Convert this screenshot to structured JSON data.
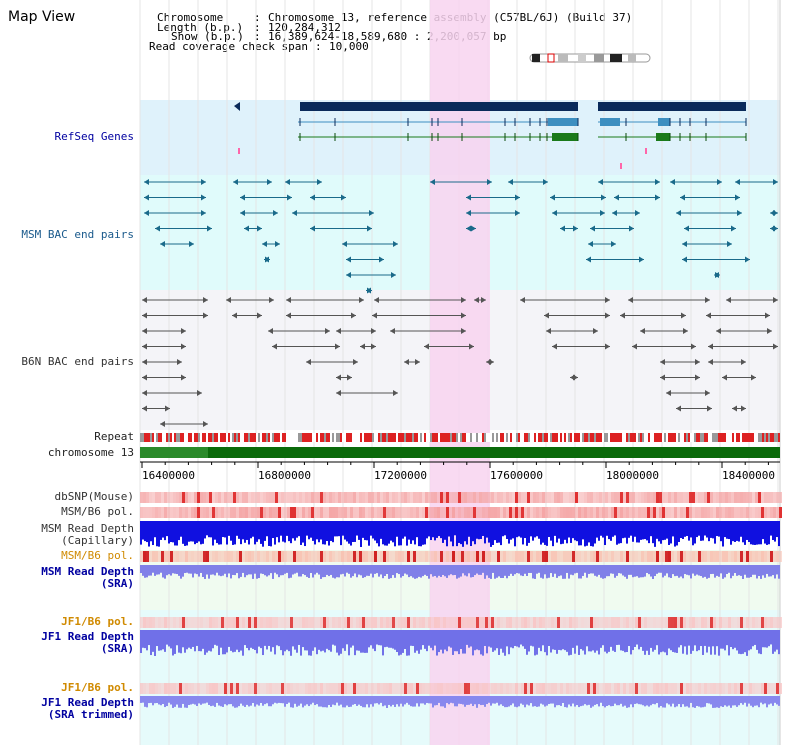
{
  "title": "Map View",
  "info": {
    "chromosome_key": "Chromosome",
    "chromosome_value": "Chromosome 13, reference assembly (C57BL/6J) (Build 37)",
    "length_key": "Length (b.p.)",
    "length_value": "120,284,312",
    "show_key": "Show (b.p.)",
    "show_value": "16,389,624-18,589,680 : 2,200,057 bp",
    "coverage_key": "Read coverage check span",
    "coverage_value": "10,000"
  },
  "tracks": {
    "refseq": "RefSeq Genes",
    "msm_bac": "MSM BAC end pairs",
    "b6n_bac": "B6N BAC end pairs",
    "repeat": "Repeat",
    "chromosome": "chromosome 13",
    "dbsnp": "dbSNP(Mouse)",
    "msm_b6_pol_1": "MSM/B6 pol.",
    "msm_read_depth_cap_1": "MSM Read Depth",
    "msm_read_depth_cap_2": "(Capillary)",
    "msm_b6_pol_2": "MSM/B6 pol.",
    "msm_read_depth_sra_1": "MSM Read Depth",
    "msm_read_depth_sra_2": "(SRA)",
    "jf1_b6_pol_1": "JF1/B6 pol.",
    "jf1_read_depth_sra_1": "JF1 Read Depth",
    "jf1_read_depth_sra_2": "(SRA)",
    "jf1_b6_pol_2": "JF1/B6 pol.",
    "jf1_read_depth_trim_1": "JF1 Read Depth",
    "jf1_read_depth_trim_2": "(SRA trimmed)"
  },
  "axis": {
    "ticks": [
      "16400000",
      "16800000",
      "17200000",
      "17600000",
      "18000000",
      "18400000"
    ]
  },
  "colors": {
    "refseq_bg": "#dff2fb",
    "msm_bg": "#e0fbfb",
    "b6n_bg": "#f4f4f8",
    "highlight": "#f8d4f0",
    "refseq_dark": "#0a2a5a",
    "refseq_mid": "#3d8fc0",
    "refseq_green": "#1a7a1a",
    "msm_teal": "#1a6a8a",
    "b6n_gray": "#555555",
    "repeat_red": "#dd2222",
    "chrom_green": "#0a6a0a",
    "snp_pink": "#f4a0a0",
    "depth_blue": "#1010e0",
    "sra_blue": "#8080e8",
    "pol_orange": "#f0b070"
  }
}
